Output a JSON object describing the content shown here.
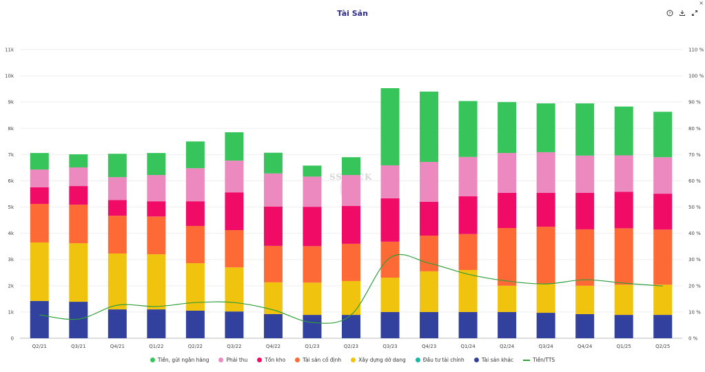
{
  "header": {
    "title": "Tài Sản",
    "help_icon": "question-circle-icon",
    "download_icon": "download-icon",
    "expand_icon": "expand-icon",
    "close_icon": "close-icon"
  },
  "watermark": "SSTOCK",
  "chart_data": {
    "type": "bar",
    "stacked": true,
    "title": "Tài Sản",
    "xlabel": "",
    "ylabel": "",
    "categories": [
      "Q2/21",
      "Q3/21",
      "Q4/21",
      "Q1/22",
      "Q2/22",
      "Q3/22",
      "Q4/22",
      "Q1/23",
      "Q2/23",
      "Q3/23",
      "Q4/23",
      "Q1/24",
      "Q2/24",
      "Q3/24",
      "Q4/24",
      "Q1/25",
      "Q2/25"
    ],
    "ylim": [
      0,
      11000
    ],
    "y_ticks": [
      "0",
      "1k",
      "2k",
      "3k",
      "4k",
      "5k",
      "6k",
      "7k",
      "8k",
      "9k",
      "10k",
      "11k"
    ],
    "y2lim": [
      0,
      110
    ],
    "y2_ticks": [
      "0 %",
      "10 %",
      "20 %",
      "30 %",
      "40 %",
      "50 %",
      "60 %",
      "70 %",
      "80 %",
      "90 %",
      "100 %",
      "110 %"
    ],
    "grid": true,
    "legend_position": "bottom",
    "series": [
      {
        "name": "Tài sản khác",
        "color": "#32409e",
        "values": [
          1420,
          1390,
          1100,
          1100,
          1050,
          1020,
          920,
          890,
          890,
          1000,
          1000,
          1000,
          1000,
          970,
          920,
          890,
          890
        ]
      },
      {
        "name": "Xây dựng dở dang",
        "color": "#f0c30f",
        "values": [
          2230,
          2230,
          2130,
          2100,
          1810,
          1680,
          1210,
          1230,
          1290,
          1310,
          1550,
          1600,
          1000,
          1100,
          1080,
          1150,
          1150
        ]
      },
      {
        "name": "Tài sản cố định",
        "color": "#fe6a35",
        "values": [
          1470,
          1470,
          1440,
          1440,
          1420,
          1420,
          1390,
          1390,
          1420,
          1370,
          1360,
          1370,
          2200,
          2180,
          2150,
          2150,
          2100
        ]
      },
      {
        "name": "Tồn kho",
        "color": "#ef0b66",
        "values": [
          630,
          710,
          600,
          580,
          940,
          1440,
          1500,
          1500,
          1440,
          1650,
          1290,
          1440,
          1340,
          1290,
          1390,
          1390,
          1370
        ]
      },
      {
        "name": "Phải thu",
        "color": "#ec89bf",
        "values": [
          680,
          710,
          870,
          1000,
          1260,
          1210,
          1260,
          1150,
          1180,
          1260,
          1520,
          1500,
          1520,
          1550,
          1420,
          1390,
          1390
        ]
      },
      {
        "name": "Đầu tư tài chính",
        "color": "#14b8a6",
        "values": [
          0,
          0,
          0,
          0,
          0,
          0,
          0,
          0,
          0,
          0,
          0,
          0,
          0,
          0,
          0,
          0,
          0
        ]
      },
      {
        "name": "Tiền, gửi ngân hàng",
        "color": "#37c55b",
        "values": [
          630,
          500,
          890,
          840,
          1020,
          1080,
          790,
          420,
          680,
          2940,
          2680,
          2130,
          1940,
          1860,
          1990,
          1860,
          1730
        ]
      }
    ],
    "line_series": {
      "name": "Tiền/TTS",
      "color": "#2e9e3a",
      "axis": "right",
      "unit": "%",
      "values": [
        8.9,
        7.3,
        12.6,
        12.1,
        13.6,
        13.6,
        10.8,
        6.0,
        8.9,
        30.7,
        28.6,
        24.4,
        21.8,
        20.7,
        22.3,
        21.0,
        19.9
      ]
    },
    "legend": [
      {
        "label": "Tiền, gửi ngân hàng",
        "color": "#37c55b",
        "shape": "dot"
      },
      {
        "label": "Phải thu",
        "color": "#ec89bf",
        "shape": "dot"
      },
      {
        "label": "Tồn kho",
        "color": "#ef0b66",
        "shape": "dot"
      },
      {
        "label": "Tài sản cố định",
        "color": "#fe6a35",
        "shape": "dot"
      },
      {
        "label": "Xây dựng dở dang",
        "color": "#f0c30f",
        "shape": "dot"
      },
      {
        "label": "Đầu tư tài chính",
        "color": "#14b8a6",
        "shape": "dot"
      },
      {
        "label": "Tài sản khác",
        "color": "#32409e",
        "shape": "dot"
      },
      {
        "label": "Tiền/TTS",
        "color": "#2e9e3a",
        "shape": "line"
      }
    ]
  }
}
